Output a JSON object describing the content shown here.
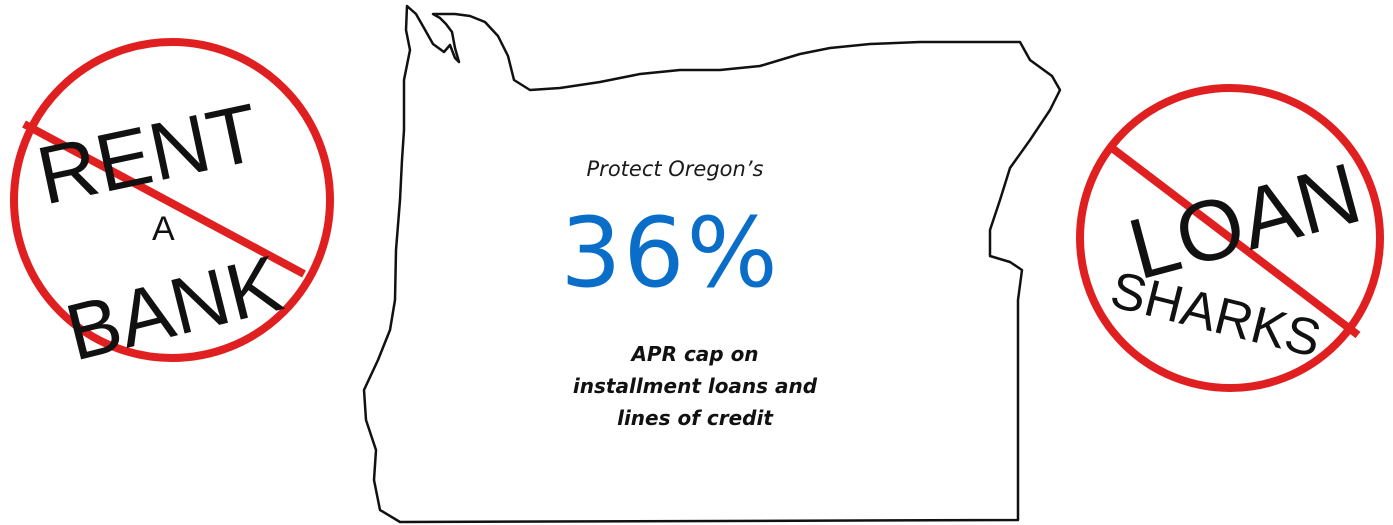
{
  "left_sign": {
    "line1": "RENT",
    "line2": "A",
    "line3": "BANK"
  },
  "right_sign": {
    "line1": "LOAN",
    "line2": "SHARKS"
  },
  "center": {
    "intro": "Protect Oregon’s",
    "rate": "36%",
    "caption_lines": [
      "APR cap on",
      "installment loans and",
      "lines of credit"
    ]
  },
  "colors": {
    "rate": "#0a6ec8",
    "prohibition_ring": "#e02020"
  }
}
